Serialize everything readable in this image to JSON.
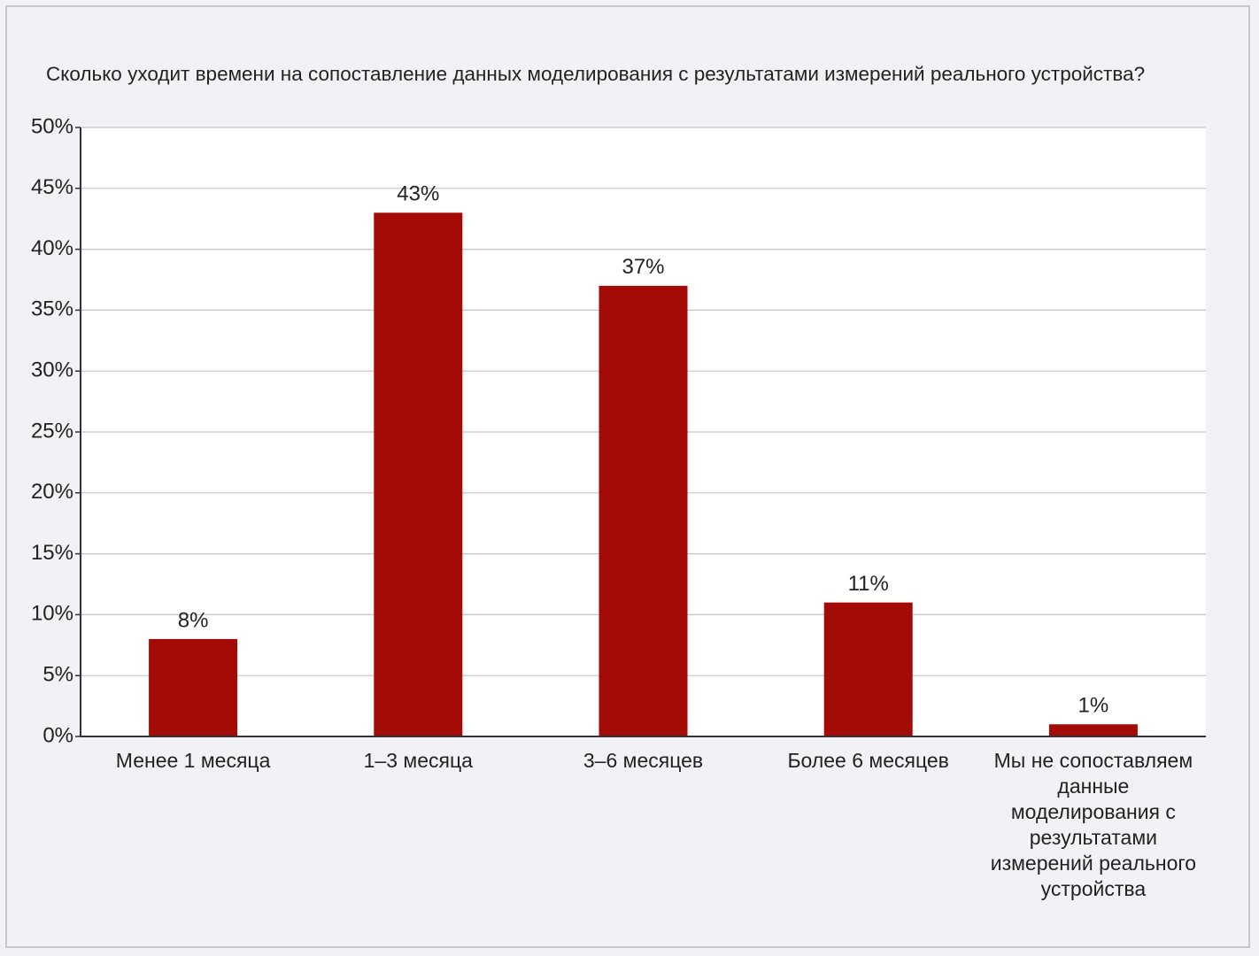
{
  "chart_data": {
    "type": "bar",
    "title": "Сколько уходит времени на сопоставление данных моделирования с результатами измерений реального устройства?",
    "categories": [
      "Менее 1 месяца",
      "1–3 месяца",
      "3–6 месяцев",
      "Более 6 месяцев",
      "Мы не сопоставляем данные моделирования с результатами измерений реального устройства"
    ],
    "values": [
      8,
      43,
      37,
      11,
      1
    ],
    "value_labels": [
      "8%",
      "43%",
      "37%",
      "11%",
      "1%"
    ],
    "color": "#a30b06",
    "ylim": [
      0,
      50
    ],
    "yticks": [
      {
        "value": 0,
        "label": "0%"
      },
      {
        "value": 5,
        "label": "5%"
      },
      {
        "value": 10,
        "label": "10%"
      },
      {
        "value": 15,
        "label": "15%"
      },
      {
        "value": 20,
        "label": "20%"
      },
      {
        "value": 25,
        "label": "25%"
      },
      {
        "value": 30,
        "label": "30%"
      },
      {
        "value": 35,
        "label": "35%"
      },
      {
        "value": 40,
        "label": "40%"
      },
      {
        "value": 45,
        "label": "45%"
      },
      {
        "value": 50,
        "label": "50%"
      }
    ],
    "grid": true
  }
}
